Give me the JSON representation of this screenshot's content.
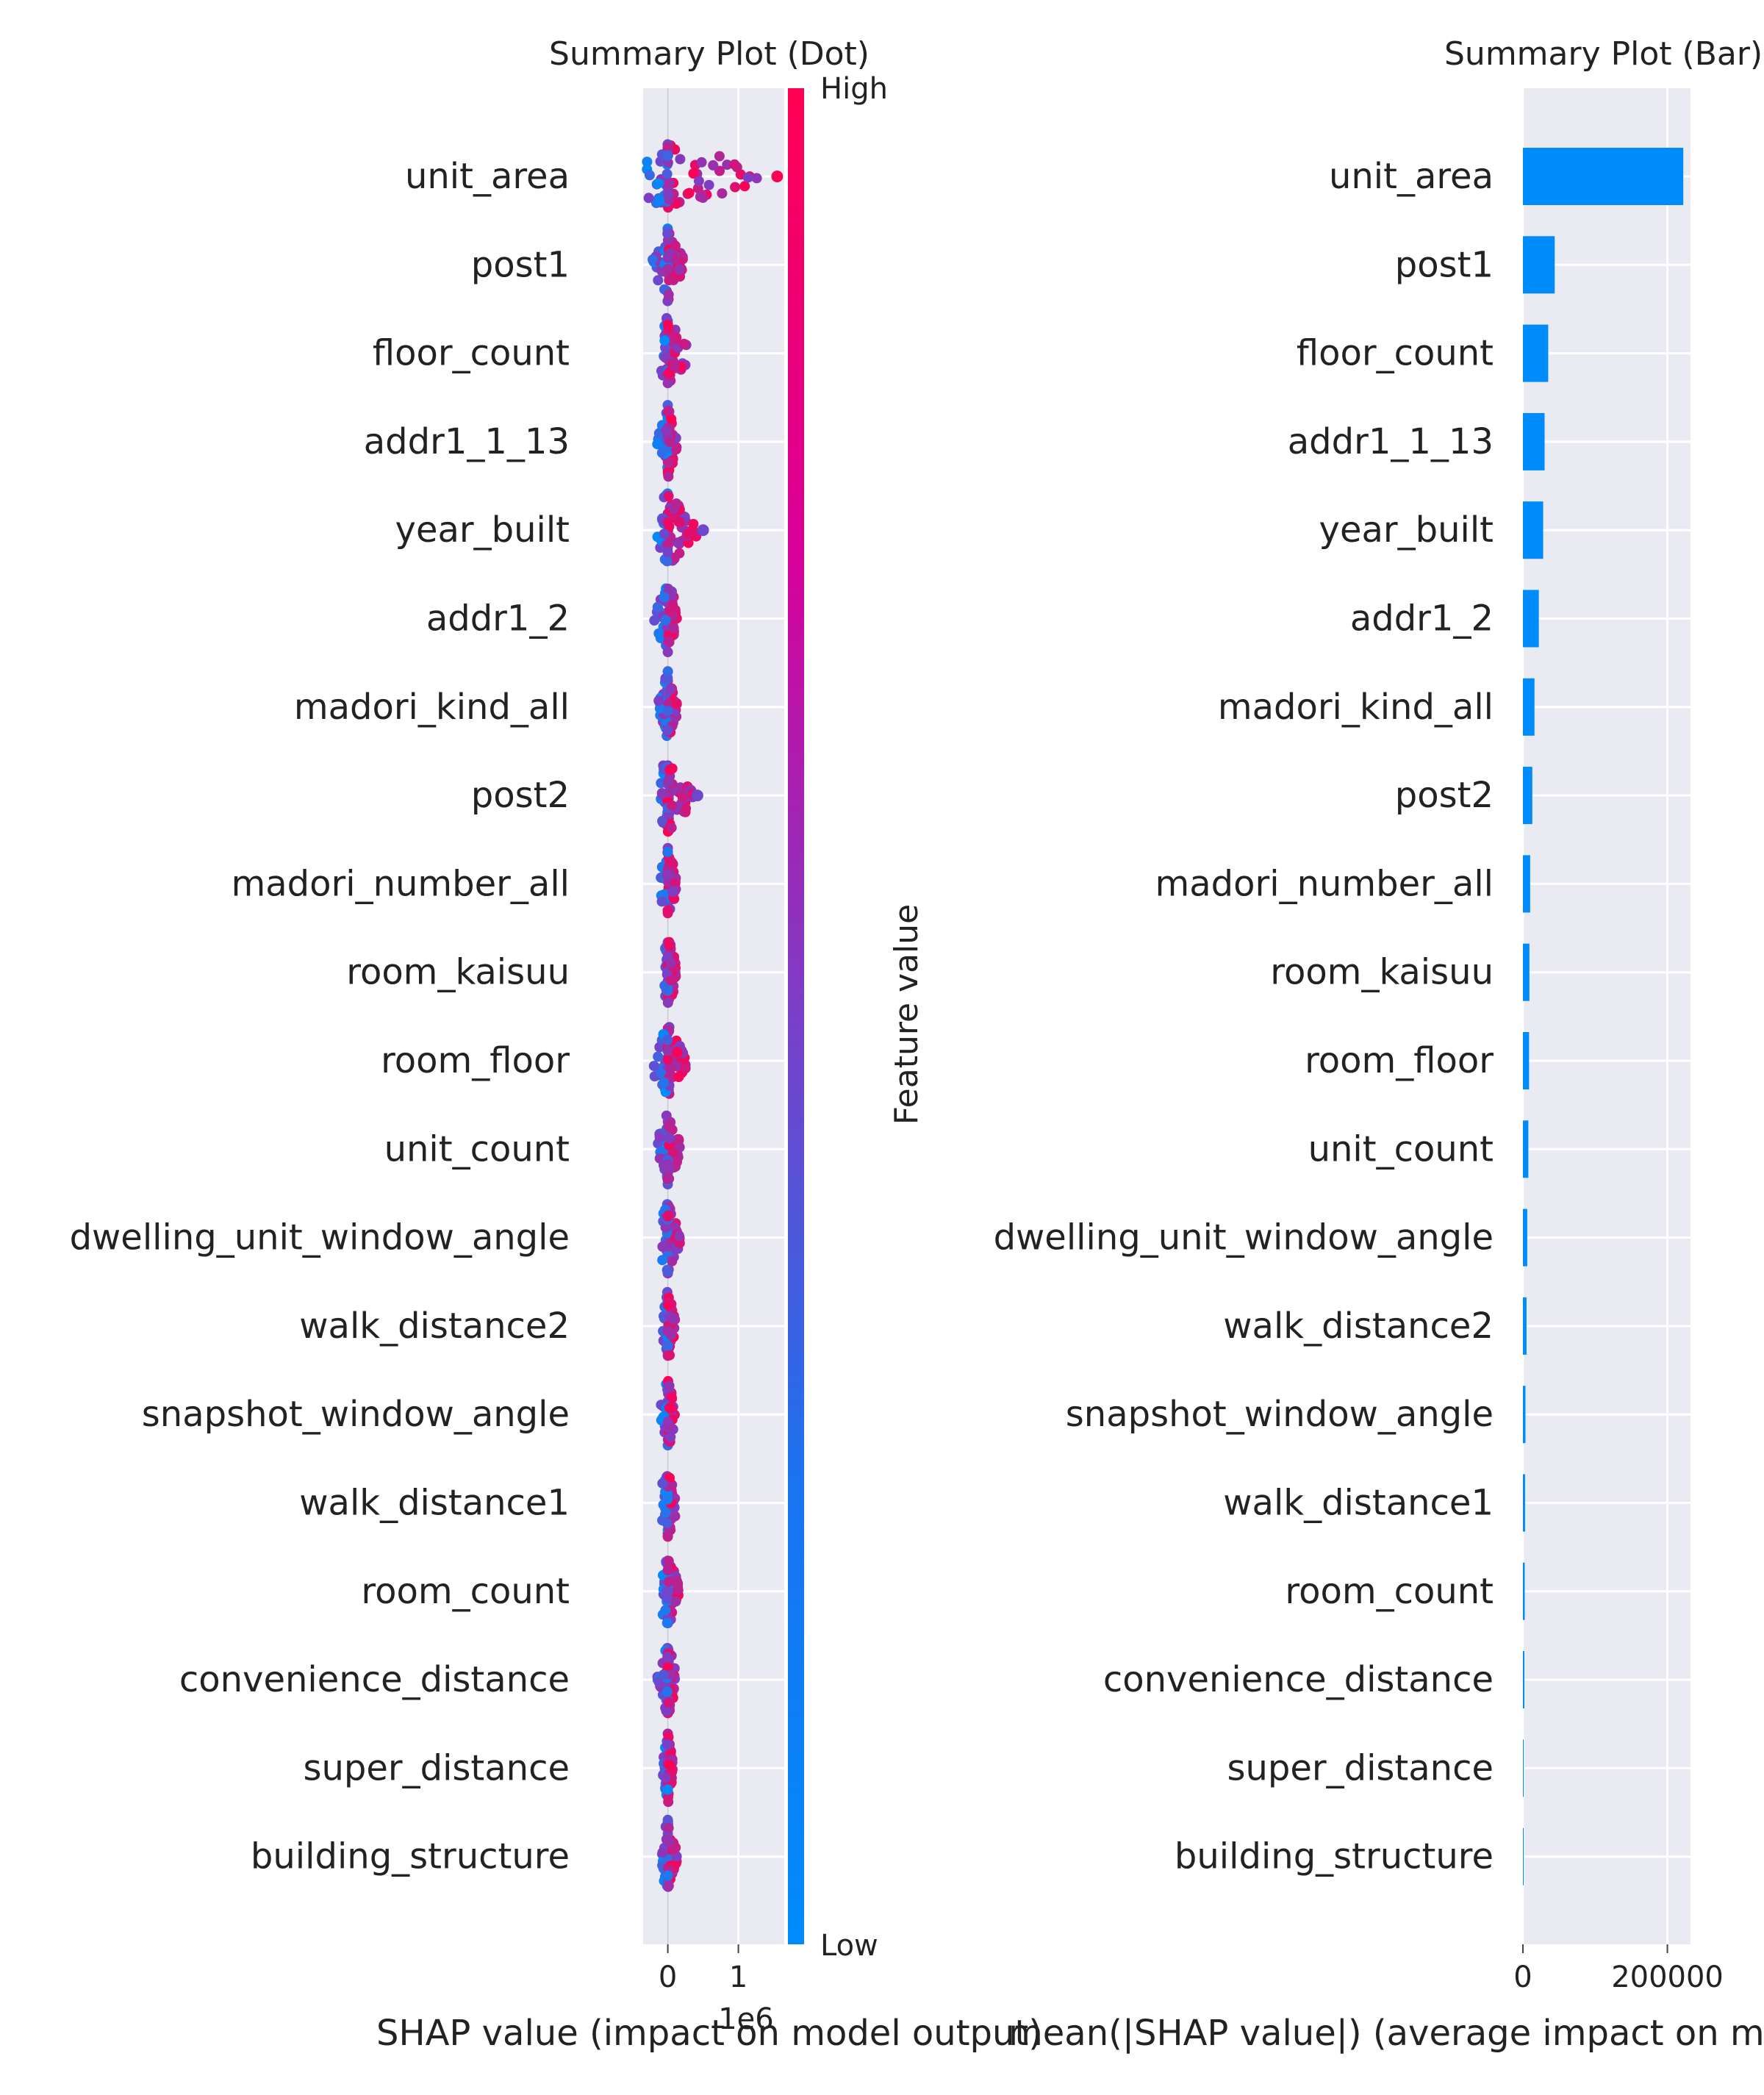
{
  "chart_data": [
    {
      "type": "scatter",
      "subtype": "shap-summary-dot",
      "title": "Summary Plot (Dot)",
      "xlabel": "SHAP value (impact on model output)",
      "axis_scale_label": "1e6",
      "ylabel": "",
      "xlim": [
        -0.35,
        1.65
      ],
      "x_ticks": [
        {
          "value": 0,
          "label": "0"
        },
        {
          "value": 1,
          "label": "1"
        }
      ],
      "x_unit": "1e6",
      "grid": true,
      "features": [
        "unit_area",
        "post1",
        "floor_count",
        "addr1_1_13",
        "year_built",
        "addr1_2",
        "madori_kind_all",
        "post2",
        "madori_number_all",
        "room_kaisuu",
        "room_floor",
        "unit_count",
        "dwelling_unit_window_angle",
        "walk_distance2",
        "snapshot_window_angle",
        "walk_distance1",
        "room_count",
        "convenience_distance",
        "super_distance",
        "building_structure"
      ],
      "colorbar": {
        "label": "Feature value",
        "high_label": "High",
        "low_label": "Low",
        "low_color": "#008bfb",
        "high_color": "#ff0052"
      },
      "dot_ranges": [
        {
          "feature": "unit_area",
          "min": -0.3,
          "max": 1.55,
          "outliers": [
            1.55
          ]
        },
        {
          "feature": "post1",
          "min": -0.25,
          "max": 0.25
        },
        {
          "feature": "floor_count",
          "min": -0.1,
          "max": 0.35
        },
        {
          "feature": "addr1_1_13",
          "min": -0.15,
          "max": 0.15
        },
        {
          "feature": "year_built",
          "min": -0.15,
          "max": 0.5,
          "outliers": [
            0.5
          ]
        },
        {
          "feature": "addr1_2",
          "min": -0.2,
          "max": 0.15
        },
        {
          "feature": "madori_kind_all",
          "min": -0.15,
          "max": 0.15
        },
        {
          "feature": "post2",
          "min": -0.1,
          "max": 0.42,
          "outliers": [
            0.42
          ]
        },
        {
          "feature": "madori_number_all",
          "min": -0.1,
          "max": 0.15
        },
        {
          "feature": "room_kaisuu",
          "min": -0.05,
          "max": 0.15
        },
        {
          "feature": "room_floor",
          "min": -0.2,
          "max": 0.3
        },
        {
          "feature": "unit_count",
          "min": -0.15,
          "max": 0.2
        },
        {
          "feature": "dwelling_unit_window_angle",
          "min": -0.08,
          "max": 0.2
        },
        {
          "feature": "walk_distance2",
          "min": -0.08,
          "max": 0.12
        },
        {
          "feature": "snapshot_window_angle",
          "min": -0.1,
          "max": 0.12
        },
        {
          "feature": "walk_distance1",
          "min": -0.08,
          "max": 0.15
        },
        {
          "feature": "room_count",
          "min": -0.08,
          "max": 0.18
        },
        {
          "feature": "convenience_distance",
          "min": -0.15,
          "max": 0.12
        },
        {
          "feature": "super_distance",
          "min": -0.08,
          "max": 0.08
        },
        {
          "feature": "building_structure",
          "min": -0.08,
          "max": 0.15
        }
      ]
    },
    {
      "type": "bar",
      "orientation": "horizontal",
      "title": "Summary Plot (Bar)",
      "xlabel": "mean(|SHAP value|) (average impact on model output magnitude)",
      "xlim": [
        0,
        232000
      ],
      "x_ticks": [
        {
          "value": 0,
          "label": "0"
        },
        {
          "value": 200000,
          "label": "200000"
        }
      ],
      "grid": true,
      "bar_color": "#008bfb",
      "categories": [
        "unit_area",
        "post1",
        "floor_count",
        "addr1_1_13",
        "year_built",
        "addr1_2",
        "madori_kind_all",
        "post2",
        "madori_number_all",
        "room_kaisuu",
        "room_floor",
        "unit_count",
        "dwelling_unit_window_angle",
        "walk_distance2",
        "snapshot_window_angle",
        "walk_distance1",
        "room_count",
        "convenience_distance",
        "super_distance",
        "building_structure"
      ],
      "values": [
        222000,
        44000,
        35000,
        30000,
        28000,
        22000,
        16000,
        13000,
        10000,
        9000,
        8500,
        7500,
        6000,
        5000,
        3500,
        3000,
        2500,
        2000,
        1000,
        800
      ]
    }
  ]
}
